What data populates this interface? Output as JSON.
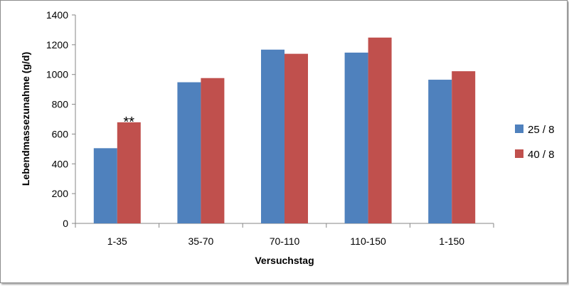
{
  "chart_data": {
    "type": "bar",
    "categories": [
      "1-35",
      "35-70",
      "70-110",
      "110-150",
      "1-150"
    ],
    "series": [
      {
        "name": "25 / 8",
        "color": "#4f81bd",
        "values": [
          505,
          948,
          1167,
          1147,
          965
        ]
      },
      {
        "name": "40 / 8",
        "color": "#c0504d",
        "values": [
          679,
          976,
          1139,
          1248,
          1022
        ]
      }
    ],
    "xlabel": "Versuchstag",
    "ylabel": "Lebendmassezunahme (g/d)",
    "ylim": [
      0,
      1400
    ],
    "yticks": [
      0,
      200,
      400,
      600,
      800,
      1000,
      1200,
      1400
    ],
    "grid": false,
    "legend": "right",
    "annotations": [
      {
        "text": "**",
        "category": "1-35",
        "series": "40 / 8"
      }
    ]
  }
}
